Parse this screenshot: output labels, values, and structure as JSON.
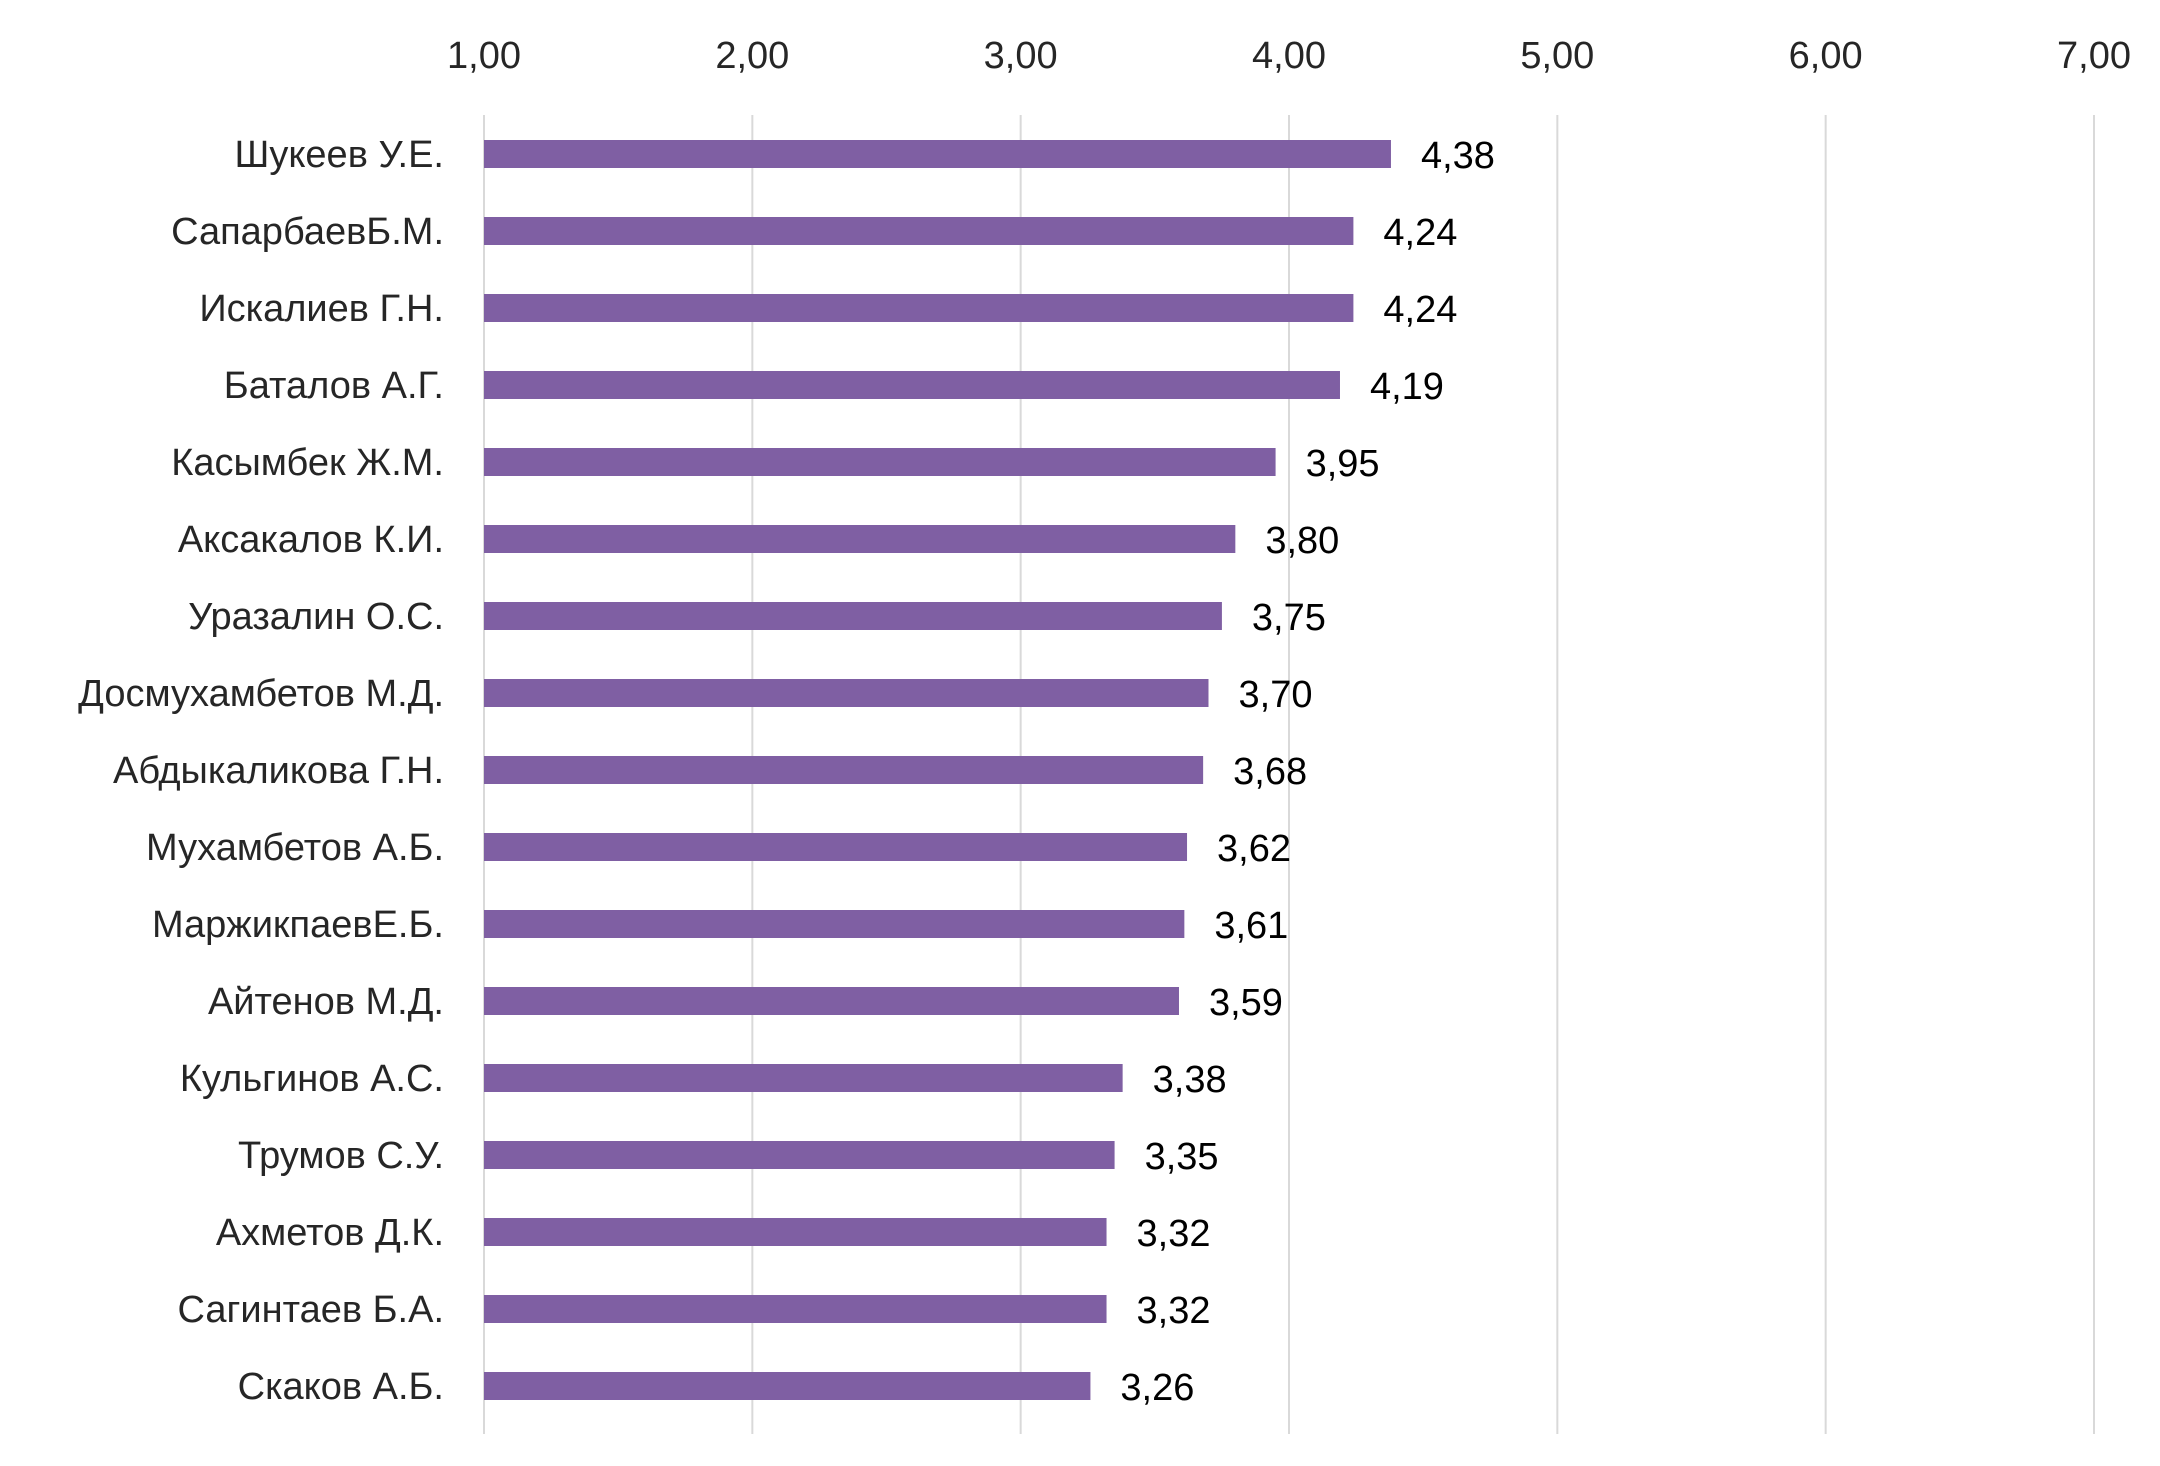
{
  "chart_data": {
    "type": "bar",
    "orientation": "horizontal",
    "categories": [
      "Шукеев У.Е.",
      "СапарбаевБ.М.",
      "Искалиев Г.Н.",
      "Баталов А.Г.",
      "Касымбек Ж.М.",
      "Аксакалов К.И.",
      "Уразалин О.С.",
      "Досмухамбетов М.Д.",
      "Абдыкаликова Г.Н.",
      "Мухамбетов А.Б.",
      "МаржикпаевЕ.Б.",
      "Айтенов М.Д.",
      "Кульгинов А.С.",
      "Трумов С.У.",
      "Ахметов Д.К.",
      "Сагинтаев Б.А.",
      "Скаков А.Б."
    ],
    "values": [
      4.38,
      4.24,
      4.24,
      4.19,
      3.95,
      3.8,
      3.75,
      3.7,
      3.68,
      3.62,
      3.61,
      3.59,
      3.38,
      3.35,
      3.32,
      3.32,
      3.26
    ],
    "value_labels": [
      "4,38",
      "4,24",
      "4,24",
      "4,19",
      "3,95",
      "3,80",
      "3,75",
      "3,70",
      "3,68",
      "3,62",
      "3,61",
      "3,59",
      "3,38",
      "3,35",
      "3,32",
      "3,32",
      "3,26"
    ],
    "xlim": [
      1,
      7
    ],
    "x_ticks": [
      1,
      2,
      3,
      4,
      5,
      6,
      7
    ],
    "x_tick_labels": [
      "1,00",
      "2,00",
      "3,00",
      "4,00",
      "5,00",
      "6,00",
      "7,00"
    ],
    "x_axis_position": "top",
    "grid": true,
    "bar_color": "#7f5fa3",
    "gridline_color": "#d9d9d9",
    "legend": "none"
  }
}
